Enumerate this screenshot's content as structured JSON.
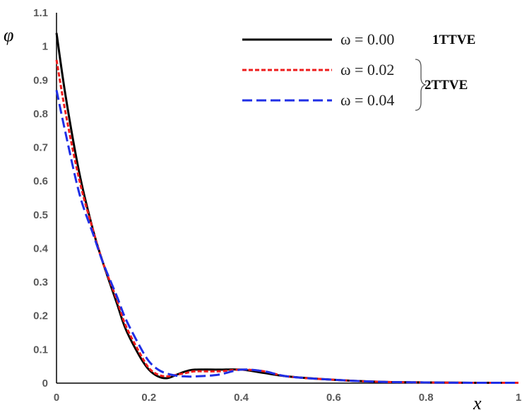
{
  "chart_data": {
    "type": "line",
    "title": "",
    "xlabel": "x",
    "ylabel": "φ",
    "xlim": [
      0,
      1
    ],
    "ylim": [
      0,
      1.1
    ],
    "x_ticks": [
      "0",
      "0.2",
      "0.4",
      "0.6",
      "0.8",
      "1"
    ],
    "y_ticks": [
      "0",
      "0.1",
      "0.2",
      "0.3",
      "0.4",
      "0.5",
      "0.6",
      "0.7",
      "0.8",
      "0.9",
      "1",
      "1.1"
    ],
    "grid": false,
    "legend_position": "top-right",
    "series": [
      {
        "name": "ω = 0.00",
        "color": "#000000",
        "style": "solid",
        "group_label": "1TTVE",
        "x": [
          0,
          0.02,
          0.05,
          0.08,
          0.1,
          0.13,
          0.15,
          0.18,
          0.2,
          0.22,
          0.24,
          0.26,
          0.28,
          0.3,
          0.35,
          0.4,
          0.45,
          0.5,
          0.6,
          0.7,
          0.8,
          0.9,
          1.0
        ],
        "y": [
          1.04,
          0.85,
          0.62,
          0.45,
          0.36,
          0.24,
          0.16,
          0.08,
          0.04,
          0.02,
          0.015,
          0.025,
          0.035,
          0.04,
          0.04,
          0.04,
          0.03,
          0.02,
          0.01,
          0.004,
          0.002,
          0.001,
          0.001
        ]
      },
      {
        "name": "ω = 0.02",
        "color": "#ee1c1c",
        "style": "dashed",
        "group_label": "2TTVE",
        "x": [
          0,
          0.02,
          0.05,
          0.08,
          0.1,
          0.13,
          0.15,
          0.18,
          0.2,
          0.22,
          0.24,
          0.26,
          0.28,
          0.3,
          0.35,
          0.4,
          0.45,
          0.5,
          0.6,
          0.7,
          0.8,
          0.9,
          1.0
        ],
        "y": [
          0.96,
          0.8,
          0.6,
          0.45,
          0.36,
          0.25,
          0.17,
          0.09,
          0.045,
          0.025,
          0.02,
          0.025,
          0.03,
          0.035,
          0.035,
          0.04,
          0.035,
          0.02,
          0.01,
          0.004,
          0.002,
          0.001,
          0.001
        ]
      },
      {
        "name": "ω = 0.04",
        "color": "#1f2fe6",
        "style": "longdash",
        "group_label": "2TTVE",
        "x": [
          0,
          0.02,
          0.05,
          0.08,
          0.1,
          0.13,
          0.15,
          0.18,
          0.2,
          0.22,
          0.24,
          0.26,
          0.28,
          0.3,
          0.35,
          0.4,
          0.45,
          0.5,
          0.6,
          0.7,
          0.8,
          0.9,
          1.0
        ],
        "y": [
          0.87,
          0.74,
          0.56,
          0.44,
          0.36,
          0.26,
          0.19,
          0.11,
          0.065,
          0.04,
          0.028,
          0.022,
          0.02,
          0.02,
          0.025,
          0.04,
          0.035,
          0.02,
          0.01,
          0.004,
          0.002,
          0.001,
          0.001
        ]
      }
    ]
  }
}
